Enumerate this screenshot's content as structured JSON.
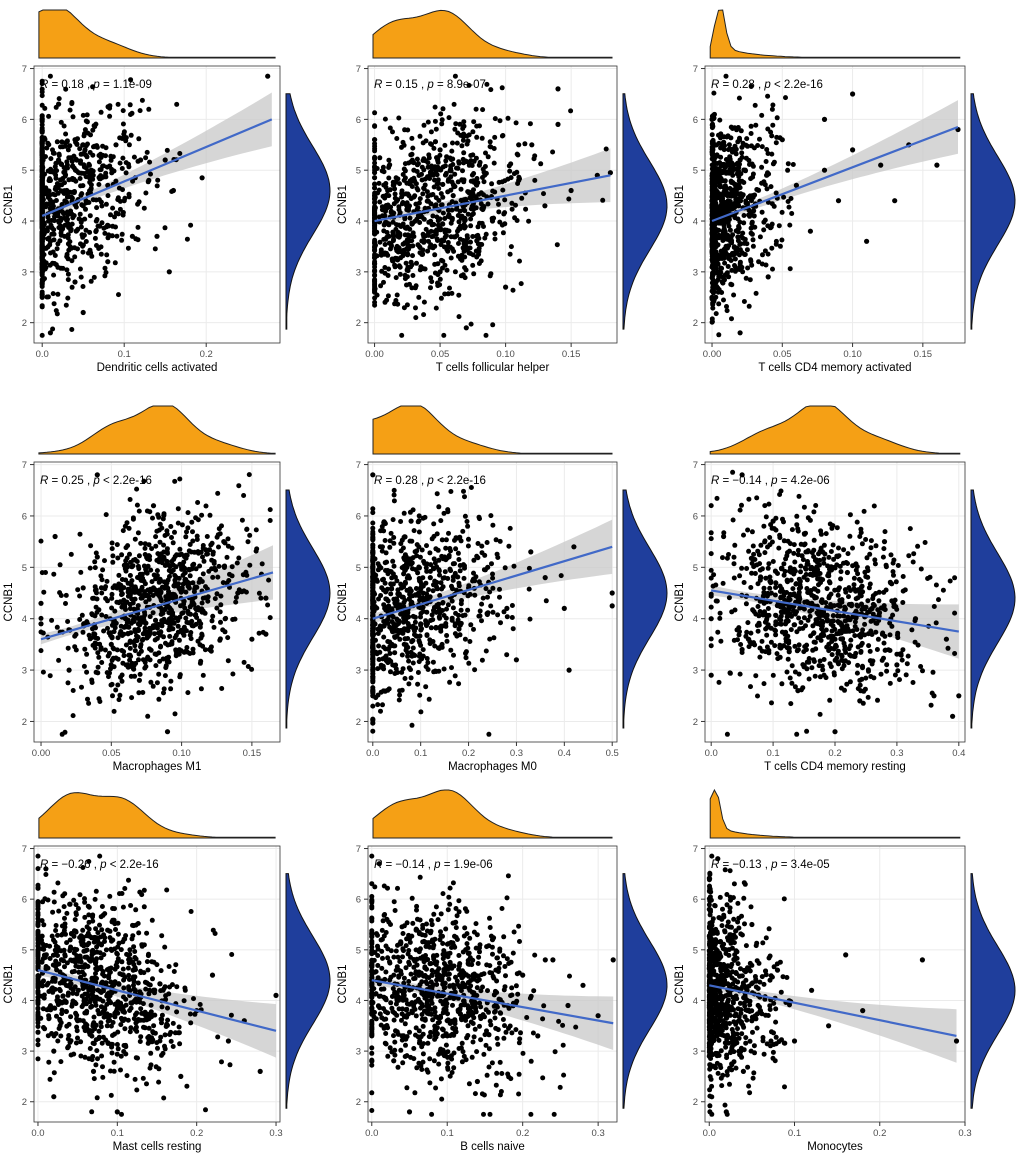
{
  "chart_data": [
    {
      "type": "scatter",
      "xlabel": "Dendritic cells activated",
      "ylabel": "CCNB1",
      "xlim": [
        -0.01,
        0.29
      ],
      "ylim": [
        1.6,
        7.05
      ],
      "xticks": [
        0.0,
        0.1,
        0.2
      ],
      "xtick_labels": [
        "0.0",
        "0.1",
        "0.2"
      ],
      "yticks": [
        2,
        3,
        4,
        5,
        6,
        7
      ],
      "ytick_labels": [
        "2",
        "3",
        "4",
        "5",
        "6",
        "7"
      ],
      "annotation": {
        "r_label": "R = 0.18 , ",
        "p_label": "p = 1.1e-09"
      },
      "fit": {
        "x0": 0.0,
        "y0": 4.1,
        "x1": 0.28,
        "y1": 6.0
      },
      "marginal_x_peak": 0.01,
      "marginal_y_peak": 4.6,
      "grid": true,
      "points": [
        [
          0.0,
          4.2
        ],
        [
          0.0,
          3.1
        ],
        [
          0.0,
          5.4
        ],
        [
          0.0,
          2.5
        ],
        [
          0.0,
          6.0
        ],
        [
          0.01,
          4.8
        ],
        [
          0.01,
          3.6
        ],
        [
          0.02,
          5.2
        ],
        [
          0.02,
          4.0
        ],
        [
          0.03,
          3.3
        ],
        [
          0.03,
          4.6
        ],
        [
          0.04,
          5.6
        ],
        [
          0.04,
          2.8
        ],
        [
          0.05,
          4.3
        ],
        [
          0.06,
          5.0
        ],
        [
          0.07,
          3.9
        ],
        [
          0.08,
          4.7
        ],
        [
          0.09,
          5.5
        ],
        [
          0.1,
          4.4
        ],
        [
          0.11,
          3.7
        ],
        [
          0.12,
          5.2
        ],
        [
          0.13,
          4.8
        ],
        [
          0.14,
          3.7
        ],
        [
          0.15,
          5.2
        ],
        [
          0.16,
          4.6
        ],
        [
          0.155,
          3.0
        ],
        [
          0.195,
          4.85
        ],
        [
          0.275,
          6.85
        ],
        [
          0.02,
          6.3
        ],
        [
          0.05,
          2.2
        ],
        [
          0.01,
          1.8
        ],
        [
          0.08,
          3.2
        ]
      ]
    },
    {
      "type": "scatter",
      "xlabel": "T cells follicular helper",
      "ylabel": "CCNB1",
      "xlim": [
        -0.005,
        0.185
      ],
      "ylim": [
        1.6,
        7.05
      ],
      "xticks": [
        0.0,
        0.05,
        0.1,
        0.15
      ],
      "xtick_labels": [
        "0.00",
        "0.05",
        "0.10",
        "0.15"
      ],
      "yticks": [
        2,
        3,
        4,
        5,
        6,
        7
      ],
      "ytick_labels": [
        "2",
        "3",
        "4",
        "5",
        "6",
        "7"
      ],
      "annotation": {
        "r_label": "R = 0.15 , ",
        "p_label": "p = 8.9e-07"
      },
      "fit": {
        "x0": 0.0,
        "y0": 4.0,
        "x1": 0.18,
        "y1": 4.9
      },
      "marginal_x_peak": 0.04,
      "marginal_y_peak": 4.3,
      "grid": true,
      "points": [
        [
          0.0,
          4.0
        ],
        [
          0.0,
          2.6
        ],
        [
          0.0,
          5.6
        ],
        [
          0.01,
          4.6
        ],
        [
          0.02,
          3.4
        ],
        [
          0.03,
          5.0
        ],
        [
          0.04,
          4.2
        ],
        [
          0.05,
          3.0
        ],
        [
          0.05,
          5.4
        ],
        [
          0.06,
          4.5
        ],
        [
          0.07,
          3.6
        ],
        [
          0.08,
          5.1
        ],
        [
          0.09,
          4.0
        ],
        [
          0.1,
          2.7
        ],
        [
          0.11,
          4.8
        ],
        [
          0.12,
          5.5
        ],
        [
          0.13,
          4.3
        ],
        [
          0.14,
          5.9
        ],
        [
          0.15,
          4.6
        ],
        [
          0.17,
          4.9
        ],
        [
          0.18,
          4.95
        ],
        [
          0.14,
          6.6
        ],
        [
          0.07,
          1.9
        ],
        [
          0.11,
          5.5
        ]
      ]
    },
    {
      "type": "scatter",
      "xlabel": "T cells CD4 memory activated",
      "ylabel": "CCNB1",
      "xlim": [
        -0.005,
        0.18
      ],
      "ylim": [
        1.6,
        7.05
      ],
      "xticks": [
        0.0,
        0.05,
        0.1,
        0.15
      ],
      "xtick_labels": [
        "0.00",
        "0.05",
        "0.10",
        "0.15"
      ],
      "yticks": [
        2,
        3,
        4,
        5,
        6,
        7
      ],
      "ytick_labels": [
        "2",
        "3",
        "4",
        "5",
        "6",
        "7"
      ],
      "annotation": {
        "r_label": "R = 0.28 , ",
        "p_label": "p < 2.2e-16"
      },
      "fit": {
        "x0": 0.0,
        "y0": 4.0,
        "x1": 0.175,
        "y1": 5.85
      },
      "marginal_x_peak": 0.005,
      "marginal_y_peak": 4.4,
      "grid": true,
      "points": [
        [
          0.0,
          4.4
        ],
        [
          0.0,
          2.5
        ],
        [
          0.0,
          6.0
        ],
        [
          0.01,
          3.5
        ],
        [
          0.02,
          5.2
        ],
        [
          0.03,
          4.1
        ],
        [
          0.04,
          2.9
        ],
        [
          0.05,
          5.6
        ],
        [
          0.06,
          4.7
        ],
        [
          0.07,
          3.8
        ],
        [
          0.08,
          5.0
        ],
        [
          0.09,
          4.4
        ],
        [
          0.1,
          5.4
        ],
        [
          0.11,
          3.6
        ],
        [
          0.12,
          5.1
        ],
        [
          0.13,
          4.4
        ],
        [
          0.14,
          5.5
        ],
        [
          0.16,
          5.1
        ],
        [
          0.175,
          5.8
        ],
        [
          0.1,
          6.5
        ],
        [
          0.08,
          6.0
        ],
        [
          0.02,
          1.8
        ]
      ]
    },
    {
      "type": "scatter",
      "xlabel": "Macrophages M1",
      "ylabel": "CCNB1",
      "xlim": [
        -0.005,
        0.17
      ],
      "ylim": [
        1.6,
        7.05
      ],
      "xticks": [
        0.0,
        0.05,
        0.1,
        0.15
      ],
      "xtick_labels": [
        "0.00",
        "0.05",
        "0.10",
        "0.15"
      ],
      "yticks": [
        2,
        3,
        4,
        5,
        6,
        7
      ],
      "ytick_labels": [
        "2",
        "3",
        "4",
        "5",
        "6",
        "7"
      ],
      "annotation": {
        "r_label": "R = 0.25 , ",
        "p_label": "p < 2.2e-16"
      },
      "fit": {
        "x0": 0.0,
        "y0": 3.6,
        "x1": 0.165,
        "y1": 4.9
      },
      "marginal_x_peak": 0.08,
      "marginal_y_peak": 4.5,
      "grid": true,
      "points": [
        [
          0.0,
          4.3
        ],
        [
          0.0,
          3.9
        ],
        [
          0.01,
          5.6
        ],
        [
          0.02,
          3.0
        ],
        [
          0.03,
          4.6
        ],
        [
          0.04,
          5.2
        ],
        [
          0.05,
          3.5
        ],
        [
          0.06,
          4.0
        ],
        [
          0.06,
          5.8
        ],
        [
          0.07,
          2.8
        ],
        [
          0.08,
          4.6
        ],
        [
          0.08,
          6.2
        ],
        [
          0.09,
          3.2
        ],
        [
          0.1,
          5.0
        ],
        [
          0.11,
          4.2
        ],
        [
          0.12,
          3.4
        ],
        [
          0.13,
          5.5
        ],
        [
          0.14,
          4.5
        ],
        [
          0.15,
          3.6
        ],
        [
          0.16,
          4.4
        ],
        [
          0.16,
          3.7
        ],
        [
          0.09,
          1.8
        ],
        [
          0.04,
          6.8
        ]
      ]
    },
    {
      "type": "scatter",
      "xlabel": "Macrophages M0",
      "ylabel": "CCNB1",
      "xlim": [
        -0.01,
        0.51
      ],
      "ylim": [
        1.6,
        7.05
      ],
      "xticks": [
        0.0,
        0.1,
        0.2,
        0.3,
        0.4,
        0.5
      ],
      "xtick_labels": [
        "0.0",
        "0.1",
        "0.2",
        "0.3",
        "0.4",
        "0.5"
      ],
      "yticks": [
        2,
        3,
        4,
        5,
        6,
        7
      ],
      "ytick_labels": [
        "2",
        "3",
        "4",
        "5",
        "6",
        "7"
      ],
      "annotation": {
        "r_label": "R = 0.28 , ",
        "p_label": "p < 2.2e-16"
      },
      "fit": {
        "x0": 0.0,
        "y0": 4.0,
        "x1": 0.5,
        "y1": 5.4
      },
      "marginal_x_peak": 0.06,
      "marginal_y_peak": 4.5,
      "grid": true,
      "points": [
        [
          0.0,
          4.2
        ],
        [
          0.0,
          2.6
        ],
        [
          0.0,
          6.8
        ],
        [
          0.02,
          5.4
        ],
        [
          0.04,
          3.5
        ],
        [
          0.06,
          4.6
        ],
        [
          0.08,
          5.9
        ],
        [
          0.1,
          3.9
        ],
        [
          0.12,
          4.8
        ],
        [
          0.15,
          5.2
        ],
        [
          0.18,
          3.8
        ],
        [
          0.2,
          4.6
        ],
        [
          0.24,
          5.0
        ],
        [
          0.28,
          4.2
        ],
        [
          0.3,
          3.2
        ],
        [
          0.33,
          5.3
        ],
        [
          0.36,
          4.8
        ],
        [
          0.4,
          4.2
        ],
        [
          0.42,
          5.4
        ],
        [
          0.41,
          3.0
        ],
        [
          0.5,
          4.5
        ],
        [
          0.5,
          4.25
        ]
      ]
    },
    {
      "type": "scatter",
      "xlabel": "T cells CD4 memory resting",
      "ylabel": "CCNB1",
      "xlim": [
        -0.01,
        0.41
      ],
      "ylim": [
        1.6,
        7.05
      ],
      "xticks": [
        0.0,
        0.1,
        0.2,
        0.3,
        0.4
      ],
      "xtick_labels": [
        "0.0",
        "0.1",
        "0.2",
        "0.3",
        "0.4"
      ],
      "yticks": [
        2,
        3,
        4,
        5,
        6,
        7
      ],
      "ytick_labels": [
        "2",
        "3",
        "4",
        "5",
        "6",
        "7"
      ],
      "annotation": {
        "r_label": "R = −0.14 , ",
        "p_label": "p = 4.2e-06"
      },
      "fit": {
        "x0": 0.0,
        "y0": 4.55,
        "x1": 0.4,
        "y1": 3.75
      },
      "marginal_x_peak": 0.17,
      "marginal_y_peak": 4.4,
      "grid": true,
      "points": [
        [
          0.0,
          4.0
        ],
        [
          0.0,
          2.9
        ],
        [
          0.02,
          5.6
        ],
        [
          0.05,
          3.4
        ],
        [
          0.08,
          4.8
        ],
        [
          0.1,
          5.9
        ],
        [
          0.12,
          3.9
        ],
        [
          0.14,
          2.6
        ],
        [
          0.16,
          4.5
        ],
        [
          0.18,
          5.3
        ],
        [
          0.2,
          3.6
        ],
        [
          0.22,
          4.9
        ],
        [
          0.24,
          2.4
        ],
        [
          0.26,
          4.2
        ],
        [
          0.28,
          5.5
        ],
        [
          0.3,
          3.1
        ],
        [
          0.33,
          4.0
        ],
        [
          0.36,
          2.5
        ],
        [
          0.38,
          3.6
        ],
        [
          0.39,
          2.1
        ],
        [
          0.4,
          2.5
        ],
        [
          0.05,
          6.8
        ],
        [
          0.2,
          1.8
        ]
      ]
    },
    {
      "type": "scatter",
      "xlabel": "Mast cells resting",
      "ylabel": "CCNB1",
      "xlim": [
        -0.005,
        0.305
      ],
      "ylim": [
        1.6,
        7.05
      ],
      "xticks": [
        0.0,
        0.1,
        0.2,
        0.3
      ],
      "xtick_labels": [
        "0.0",
        "0.1",
        "0.2",
        "0.3"
      ],
      "yticks": [
        2,
        3,
        4,
        5,
        6,
        7
      ],
      "ytick_labels": [
        "2",
        "3",
        "4",
        "5",
        "6",
        "7"
      ],
      "annotation": {
        "r_label": "R = −0.26 , ",
        "p_label": "p < 2.2e-16"
      },
      "fit": {
        "x0": 0.0,
        "y0": 4.6,
        "x1": 0.3,
        "y1": 3.4
      },
      "marginal_x_peak": 0.07,
      "marginal_y_peak": 4.4,
      "grid": true,
      "points": [
        [
          0.0,
          5.5
        ],
        [
          0.0,
          4.0
        ],
        [
          0.01,
          6.6
        ],
        [
          0.02,
          3.0
        ],
        [
          0.03,
          4.8
        ],
        [
          0.04,
          5.9
        ],
        [
          0.05,
          3.6
        ],
        [
          0.06,
          4.4
        ],
        [
          0.07,
          2.6
        ],
        [
          0.08,
          5.1
        ],
        [
          0.1,
          3.9
        ],
        [
          0.12,
          4.6
        ],
        [
          0.14,
          3.2
        ],
        [
          0.16,
          4.0
        ],
        [
          0.18,
          2.5
        ],
        [
          0.2,
          3.8
        ],
        [
          0.22,
          4.5
        ],
        [
          0.24,
          3.2
        ],
        [
          0.26,
          3.6
        ],
        [
          0.28,
          2.6
        ],
        [
          0.3,
          4.1
        ],
        [
          0.02,
          2.1
        ],
        [
          0.1,
          1.8
        ]
      ]
    },
    {
      "type": "scatter",
      "xlabel": "B cells naive",
      "ylabel": "CCNB1",
      "xlim": [
        -0.005,
        0.325
      ],
      "ylim": [
        1.6,
        7.05
      ],
      "xticks": [
        0.0,
        0.1,
        0.2,
        0.3
      ],
      "xtick_labels": [
        "0.0",
        "0.1",
        "0.2",
        "0.3"
      ],
      "yticks": [
        2,
        3,
        4,
        5,
        6,
        7
      ],
      "ytick_labels": [
        "2",
        "3",
        "4",
        "5",
        "6",
        "7"
      ],
      "annotation": {
        "r_label": "R = −0.14 , ",
        "p_label": "p = 1.9e-06"
      },
      "fit": {
        "x0": 0.0,
        "y0": 4.4,
        "x1": 0.32,
        "y1": 3.55
      },
      "marginal_x_peak": 0.08,
      "marginal_y_peak": 4.3,
      "grid": true,
      "points": [
        [
          0.0,
          4.4
        ],
        [
          0.0,
          2.8
        ],
        [
          0.01,
          6.7
        ],
        [
          0.02,
          5.6
        ],
        [
          0.04,
          3.3
        ],
        [
          0.06,
          4.7
        ],
        [
          0.08,
          5.5
        ],
        [
          0.1,
          3.6
        ],
        [
          0.12,
          4.3
        ],
        [
          0.14,
          2.4
        ],
        [
          0.16,
          5.2
        ],
        [
          0.18,
          3.9
        ],
        [
          0.2,
          4.5
        ],
        [
          0.22,
          3.3
        ],
        [
          0.24,
          4.8
        ],
        [
          0.26,
          3.9
        ],
        [
          0.28,
          4.3
        ],
        [
          0.3,
          3.7
        ],
        [
          0.32,
          4.8
        ],
        [
          0.05,
          1.8
        ],
        [
          0.23,
          4.8
        ]
      ]
    },
    {
      "type": "scatter",
      "xlabel": "Monocytes",
      "ylabel": "CCNB1",
      "xlim": [
        -0.005,
        0.3
      ],
      "ylim": [
        1.6,
        7.05
      ],
      "xticks": [
        0.0,
        0.1,
        0.2,
        0.3
      ],
      "xtick_labels": [
        "0.0",
        "0.1",
        "0.2",
        "0.3"
      ],
      "yticks": [
        2,
        3,
        4,
        5,
        6,
        7
      ],
      "ytick_labels": [
        "2",
        "3",
        "4",
        "5",
        "6",
        "7"
      ],
      "annotation": {
        "r_label": "R = −0.13 , ",
        "p_label": "p = 3.4e-05"
      },
      "fit": {
        "x0": 0.0,
        "y0": 4.3,
        "x1": 0.29,
        "y1": 3.3
      },
      "marginal_x_peak": 0.005,
      "marginal_y_peak": 4.2,
      "grid": true,
      "points": [
        [
          0.0,
          4.2
        ],
        [
          0.0,
          2.9
        ],
        [
          0.0,
          5.8
        ],
        [
          0.01,
          3.6
        ],
        [
          0.02,
          5.0
        ],
        [
          0.03,
          4.4
        ],
        [
          0.04,
          2.6
        ],
        [
          0.05,
          5.5
        ],
        [
          0.06,
          3.8
        ],
        [
          0.08,
          4.6
        ],
        [
          0.1,
          3.2
        ],
        [
          0.12,
          4.2
        ],
        [
          0.14,
          3.5
        ],
        [
          0.16,
          4.9
        ],
        [
          0.18,
          3.8
        ],
        [
          0.25,
          4.8
        ],
        [
          0.29,
          3.2
        ],
        [
          0.01,
          6.8
        ],
        [
          0.02,
          1.8
        ]
      ]
    }
  ],
  "colors": {
    "point": "#000000",
    "fit_line": "#4169c8",
    "ci_band": "#c8c8c8",
    "top_density": "#f5a015",
    "right_density": "#1f3e9c",
    "grid": "#ebebeb",
    "panel_border": "#333333"
  }
}
